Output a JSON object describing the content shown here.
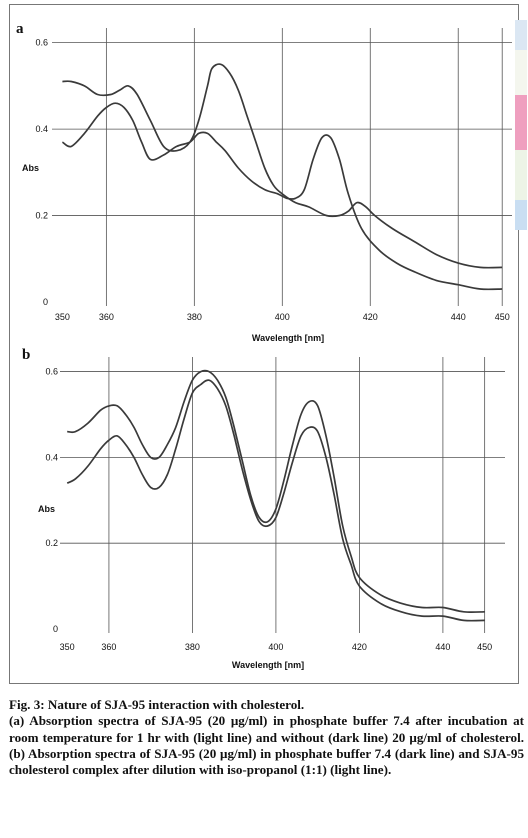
{
  "chart_data": [
    {
      "panel": "a",
      "type": "line",
      "xlabel": "Wavelength [nm]",
      "ylabel": "Abs",
      "xlim": [
        349,
        452
      ],
      "ylim": [
        0,
        0.62
      ],
      "x_ticks": [
        350,
        360,
        380,
        400,
        420,
        440,
        450
      ],
      "y_ticks": [
        0,
        0.2,
        0.4,
        0.6
      ],
      "y_tick_labels": [
        "0",
        "0.2",
        "0.4",
        "0.6"
      ],
      "grid": "major",
      "series": [
        {
          "x": [
            350,
            352,
            355,
            358,
            361,
            363,
            365,
            367,
            370,
            373,
            376,
            379,
            381,
            383,
            384,
            386,
            388,
            390,
            392,
            394,
            396,
            398,
            400,
            403,
            406,
            410,
            413,
            415,
            417,
            419,
            421,
            425,
            430,
            435,
            440,
            445,
            450
          ],
          "y": [
            0.51,
            0.51,
            0.5,
            0.48,
            0.48,
            0.49,
            0.5,
            0.48,
            0.42,
            0.36,
            0.35,
            0.37,
            0.42,
            0.5,
            0.54,
            0.55,
            0.53,
            0.49,
            0.43,
            0.37,
            0.31,
            0.27,
            0.25,
            0.23,
            0.22,
            0.2,
            0.2,
            0.21,
            0.23,
            0.22,
            0.2,
            0.17,
            0.14,
            0.11,
            0.09,
            0.08,
            0.08
          ]
        },
        {
          "x": [
            350,
            352,
            355,
            358,
            360,
            362,
            364,
            366,
            368,
            370,
            373,
            376,
            379,
            381,
            383,
            385,
            387,
            390,
            393,
            396,
            399,
            401,
            403,
            405,
            407,
            409,
            411,
            413,
            415,
            418,
            422,
            426,
            430,
            435,
            440,
            445,
            450
          ],
          "y": [
            0.37,
            0.36,
            0.39,
            0.43,
            0.45,
            0.46,
            0.45,
            0.42,
            0.37,
            0.33,
            0.34,
            0.36,
            0.37,
            0.39,
            0.39,
            0.37,
            0.35,
            0.31,
            0.28,
            0.26,
            0.25,
            0.24,
            0.24,
            0.26,
            0.33,
            0.38,
            0.38,
            0.33,
            0.25,
            0.17,
            0.12,
            0.09,
            0.07,
            0.05,
            0.04,
            0.03,
            0.03
          ]
        }
      ]
    },
    {
      "panel": "b",
      "type": "line",
      "xlabel": "Wavelength [nm]",
      "ylabel": "Abs",
      "xlim": [
        349,
        452
      ],
      "ylim": [
        0,
        0.62
      ],
      "x_ticks": [
        350,
        360,
        380,
        400,
        420,
        440,
        450
      ],
      "y_ticks": [
        0,
        0.2,
        0.4,
        0.6
      ],
      "y_tick_labels": [
        "0",
        "0.2",
        "0.4",
        "0.6"
      ],
      "grid": "major",
      "series": [
        {
          "x": [
            350,
            352,
            355,
            358,
            360,
            362,
            364,
            366,
            368,
            370,
            372,
            374,
            376,
            378,
            380,
            382,
            384,
            386,
            388,
            390,
            392,
            394,
            396,
            398,
            400,
            402,
            404,
            406,
            408,
            410,
            412,
            414,
            416,
            418,
            420,
            425,
            430,
            435,
            440,
            445,
            450
          ],
          "y": [
            0.46,
            0.46,
            0.48,
            0.51,
            0.52,
            0.52,
            0.5,
            0.47,
            0.43,
            0.4,
            0.4,
            0.43,
            0.47,
            0.53,
            0.58,
            0.6,
            0.6,
            0.58,
            0.54,
            0.47,
            0.39,
            0.31,
            0.26,
            0.25,
            0.28,
            0.35,
            0.43,
            0.5,
            0.53,
            0.52,
            0.45,
            0.35,
            0.24,
            0.17,
            0.12,
            0.08,
            0.06,
            0.05,
            0.05,
            0.04,
            0.04
          ]
        },
        {
          "x": [
            350,
            352,
            355,
            358,
            360,
            362,
            364,
            366,
            368,
            370,
            372,
            374,
            376,
            378,
            380,
            382,
            384,
            386,
            388,
            390,
            392,
            394,
            396,
            398,
            400,
            402,
            404,
            406,
            408,
            410,
            412,
            414,
            416,
            418,
            420,
            425,
            430,
            435,
            440,
            445,
            450
          ],
          "y": [
            0.34,
            0.35,
            0.38,
            0.42,
            0.44,
            0.45,
            0.43,
            0.4,
            0.36,
            0.33,
            0.33,
            0.36,
            0.42,
            0.49,
            0.55,
            0.57,
            0.58,
            0.56,
            0.52,
            0.45,
            0.37,
            0.3,
            0.25,
            0.24,
            0.26,
            0.32,
            0.39,
            0.45,
            0.47,
            0.46,
            0.4,
            0.31,
            0.21,
            0.15,
            0.1,
            0.06,
            0.04,
            0.03,
            0.03,
            0.02,
            0.02
          ]
        }
      ]
    }
  ],
  "caption": {
    "title": "Fig. 3: Nature of SJA-95 interaction with cholesterol.",
    "body": "(a) Absorption spectra of SJA-95 (20 μg/ml) in phosphate buffer 7.4 after incubation at room temperature for 1 hr with (light line) and without (dark line) 20 μg/ml of cholesterol. (b) Absorption spectra of SJA-95 (20 μg/ml) in phosphate buffer 7.4 (dark line) and SJA-95 cholesterol complex after dilution with iso-propanol (1:1) (light line)."
  },
  "colors": {
    "curve": "#3a3a3a",
    "grid": "#555555",
    "frame": "#777777"
  }
}
